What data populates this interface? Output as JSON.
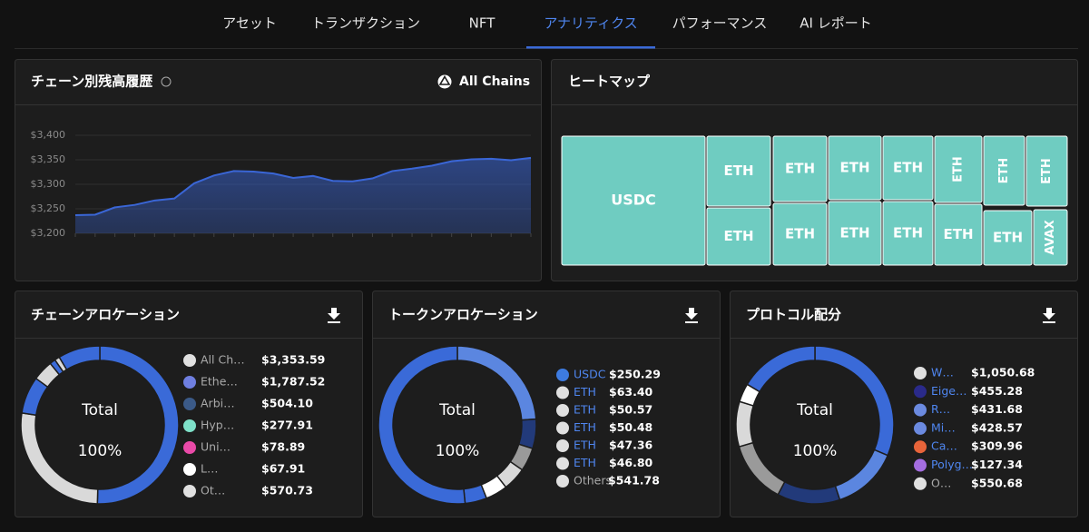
{
  "tabs": [
    "アセット",
    "トランザクション",
    "NFT",
    "アナリティクス",
    "パフォーマンス",
    "AI レポート"
  ],
  "active_tab": 3,
  "balance": {
    "title": "チェーン別残高履歴",
    "chain_selector": "All Chains",
    "chart": {
      "type": "area",
      "color": "#3a66d6",
      "ylim": [
        3200,
        3400
      ],
      "yticks": [
        {
          "value": 3200,
          "label": "$3,200"
        },
        {
          "value": 3250,
          "label": "$3,250"
        },
        {
          "value": 3300,
          "label": "$3,300"
        },
        {
          "value": 3350,
          "label": "$3,350"
        },
        {
          "value": 3400,
          "label": "$3,400"
        }
      ],
      "values": [
        3237,
        3238,
        3253,
        3258,
        3267,
        3271,
        3302,
        3318,
        3327,
        3326,
        3322,
        3313,
        3317,
        3307,
        3306,
        3312,
        3327,
        3332,
        3338,
        3347,
        3351,
        3352,
        3349,
        3354
      ],
      "grid": true
    }
  },
  "heatmap": {
    "title": "ヒートマップ",
    "color": "#6fccc1",
    "cells": [
      "USDC",
      "ETH",
      "ETH",
      "ETH",
      "ETH",
      "ETH",
      "ETH",
      "ETH",
      "ETH",
      "ETH",
      "ETH",
      "ETH",
      "ETH",
      "ETH",
      "AVAX"
    ]
  },
  "allocations": [
    {
      "title": "チェーンアロケーション",
      "center_label": "Total",
      "center_value": "100%",
      "names": [
        "All Ch…",
        "Ethe…",
        "Arbi…",
        "Hyp…",
        "Uni…",
        "L…",
        "Ot…"
      ],
      "values": [
        3353.59,
        1787.52,
        504.1,
        277.91,
        78.89,
        67.91,
        570.73
      ],
      "value_labels": [
        "$3,353.59",
        "$1,787.52",
        "$504.10",
        "$277.91",
        "$78.89",
        "$67.91",
        "$570.73"
      ],
      "colors": [
        "#3a6ad8",
        "#d9d9d9",
        "#3a6ad8",
        "#d9d9d9",
        "#3a6ad8",
        "#d9d9d9",
        "#3a6ad8"
      ],
      "icon_colors": [
        "#e0e0e0",
        "#6f7fe0",
        "#3b5a88",
        "#7ee0c8",
        "#e94aa8",
        "#ffffff",
        "#e0e0e0"
      ],
      "name_color": "#aaaaaa"
    },
    {
      "title": "トークンアロケーション",
      "center_label": "Total",
      "center_value": "100%",
      "names": [
        "USDC",
        "ETH",
        "ETH",
        "ETH",
        "ETH",
        "ETH",
        "Others"
      ],
      "values": [
        250.29,
        63.4,
        50.57,
        50.48,
        47.36,
        46.8,
        541.78
      ],
      "value_labels": [
        "$250.29",
        "$63.40",
        "$50.57",
        "$50.48",
        "$47.36",
        "$46.80",
        "$541.78"
      ],
      "colors": [
        "#5b86e0",
        "#223a7a",
        "#9a9a9a",
        "#d9d9d9",
        "#ffffff",
        "#3a6ad8",
        "#3a6ad8"
      ],
      "icon_colors": [
        "#3d7be0",
        "#e0e0e0",
        "#e0e0e0",
        "#e0e0e0",
        "#e0e0e0",
        "#e0e0e0",
        "#e0e0e0"
      ],
      "name_color": "#4f86f0"
    },
    {
      "title": "プロトコル配分",
      "center_label": "Total",
      "center_value": "100%",
      "names": [
        "W…",
        "Eige…",
        "R…",
        "Mi…",
        "Ca…",
        "Polyg…",
        "O…"
      ],
      "values": [
        1050.68,
        455.28,
        431.68,
        428.57,
        309.96,
        127.34,
        550.68
      ],
      "value_labels": [
        "$1,050.68",
        "$455.28",
        "$431.68",
        "$428.57",
        "$309.96",
        "$127.34",
        "$550.68"
      ],
      "colors": [
        "#3a6ad8",
        "#5b86e0",
        "#223a7a",
        "#9a9a9a",
        "#d9d9d9",
        "#ffffff",
        "#3a6ad8"
      ],
      "icon_colors": [
        "#e0e0e0",
        "#2a2a8a",
        "#6b8ae0",
        "#6b8ae0",
        "#e8643a",
        "#a46de0",
        "#e0e0e0"
      ],
      "name_color": "#4f86f0"
    }
  ]
}
